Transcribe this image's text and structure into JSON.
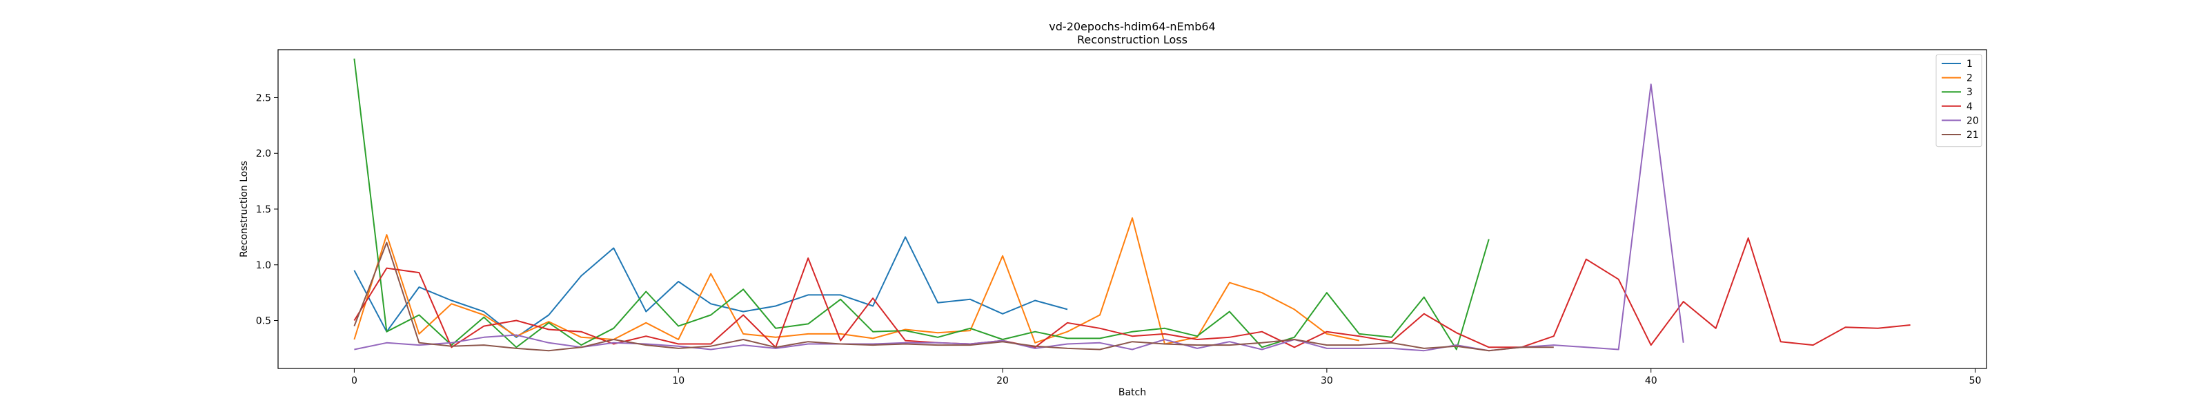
{
  "chart_data": {
    "type": "line",
    "title": "vd-20epochs-hdim64-nEmb64",
    "subtitle": "Reconstruction Loss",
    "xlabel": "Batch",
    "ylabel": "Reconstruction Loss",
    "xlim": [
      -2.35,
      50.35
    ],
    "ylim": [
      0.07,
      2.93
    ],
    "xticks": [
      0,
      10,
      20,
      30,
      40,
      50
    ],
    "yticks": [
      0.5,
      1.0,
      1.5,
      2.0,
      2.5
    ],
    "xtick_labels": [
      "0",
      "10",
      "20",
      "30",
      "40",
      "50"
    ],
    "ytick_labels": [
      "0.5",
      "1.0",
      "1.5",
      "2.0",
      "2.5"
    ],
    "grid": false,
    "legend_position": "top-right",
    "series": [
      {
        "name": "1",
        "color": "#1f77b4",
        "values": [
          0.95,
          0.4,
          0.8,
          0.68,
          0.58,
          0.35,
          0.55,
          0.9,
          1.15,
          0.58,
          0.85,
          0.65,
          0.58,
          0.63,
          0.73,
          0.73,
          0.63,
          1.25,
          0.66,
          0.69,
          0.56,
          0.68,
          0.6
        ]
      },
      {
        "name": "2",
        "color": "#ff7f0e",
        "values": [
          0.33,
          1.27,
          0.38,
          0.65,
          0.55,
          0.36,
          0.49,
          0.35,
          0.33,
          0.48,
          0.33,
          0.92,
          0.38,
          0.35,
          0.38,
          0.38,
          0.34,
          0.42,
          0.39,
          0.41,
          1.08,
          0.3,
          0.4,
          0.55,
          1.42,
          0.29,
          0.35,
          0.84,
          0.75,
          0.6,
          0.38,
          0.32
        ]
      },
      {
        "name": "3",
        "color": "#2ca02c",
        "values": [
          2.85,
          0.4,
          0.55,
          0.28,
          0.53,
          0.26,
          0.48,
          0.28,
          0.43,
          0.76,
          0.45,
          0.55,
          0.78,
          0.43,
          0.47,
          0.69,
          0.4,
          0.41,
          0.35,
          0.43,
          0.33,
          0.4,
          0.34,
          0.34,
          0.4,
          0.43,
          0.36,
          0.58,
          0.26,
          0.35,
          0.75,
          0.38,
          0.35,
          0.71,
          0.24,
          1.23
        ]
      },
      {
        "name": "4",
        "color": "#d62728",
        "values": [
          0.5,
          0.97,
          0.93,
          0.26,
          0.45,
          0.5,
          0.42,
          0.4,
          0.29,
          0.36,
          0.29,
          0.29,
          0.55,
          0.26,
          1.06,
          0.32,
          0.7,
          0.32,
          0.3,
          0.29,
          0.32,
          0.26,
          0.48,
          0.43,
          0.36,
          0.38,
          0.33,
          0.35,
          0.4,
          0.26,
          0.4,
          0.36,
          0.31,
          0.56,
          0.39,
          0.26,
          0.26,
          0.36,
          1.05,
          0.87,
          0.28,
          0.67,
          0.43,
          1.24,
          0.31,
          0.28,
          0.44,
          0.43,
          0.46
        ]
      },
      {
        "name": "20",
        "color": "#9467bd",
        "values": [
          0.24,
          0.3,
          0.28,
          0.3,
          0.35,
          0.37,
          0.3,
          0.26,
          0.3,
          0.29,
          0.27,
          0.24,
          0.28,
          0.25,
          0.29,
          0.29,
          0.29,
          0.3,
          0.3,
          0.29,
          0.32,
          0.25,
          0.29,
          0.3,
          0.24,
          0.33,
          0.25,
          0.31,
          0.24,
          0.33,
          0.25,
          0.25,
          0.25,
          0.23,
          0.28,
          0.23,
          0.26,
          0.28,
          0.26,
          0.24,
          2.62,
          0.3
        ]
      },
      {
        "name": "21",
        "color": "#8c564b",
        "values": [
          0.45,
          1.2,
          0.3,
          0.27,
          0.28,
          0.25,
          0.23,
          0.26,
          0.33,
          0.28,
          0.25,
          0.27,
          0.33,
          0.26,
          0.31,
          0.29,
          0.28,
          0.29,
          0.28,
          0.28,
          0.31,
          0.27,
          0.25,
          0.24,
          0.31,
          0.29,
          0.28,
          0.28,
          0.3,
          0.33,
          0.28,
          0.28,
          0.3,
          0.25,
          0.27,
          0.23,
          0.26,
          0.26
        ]
      }
    ]
  }
}
